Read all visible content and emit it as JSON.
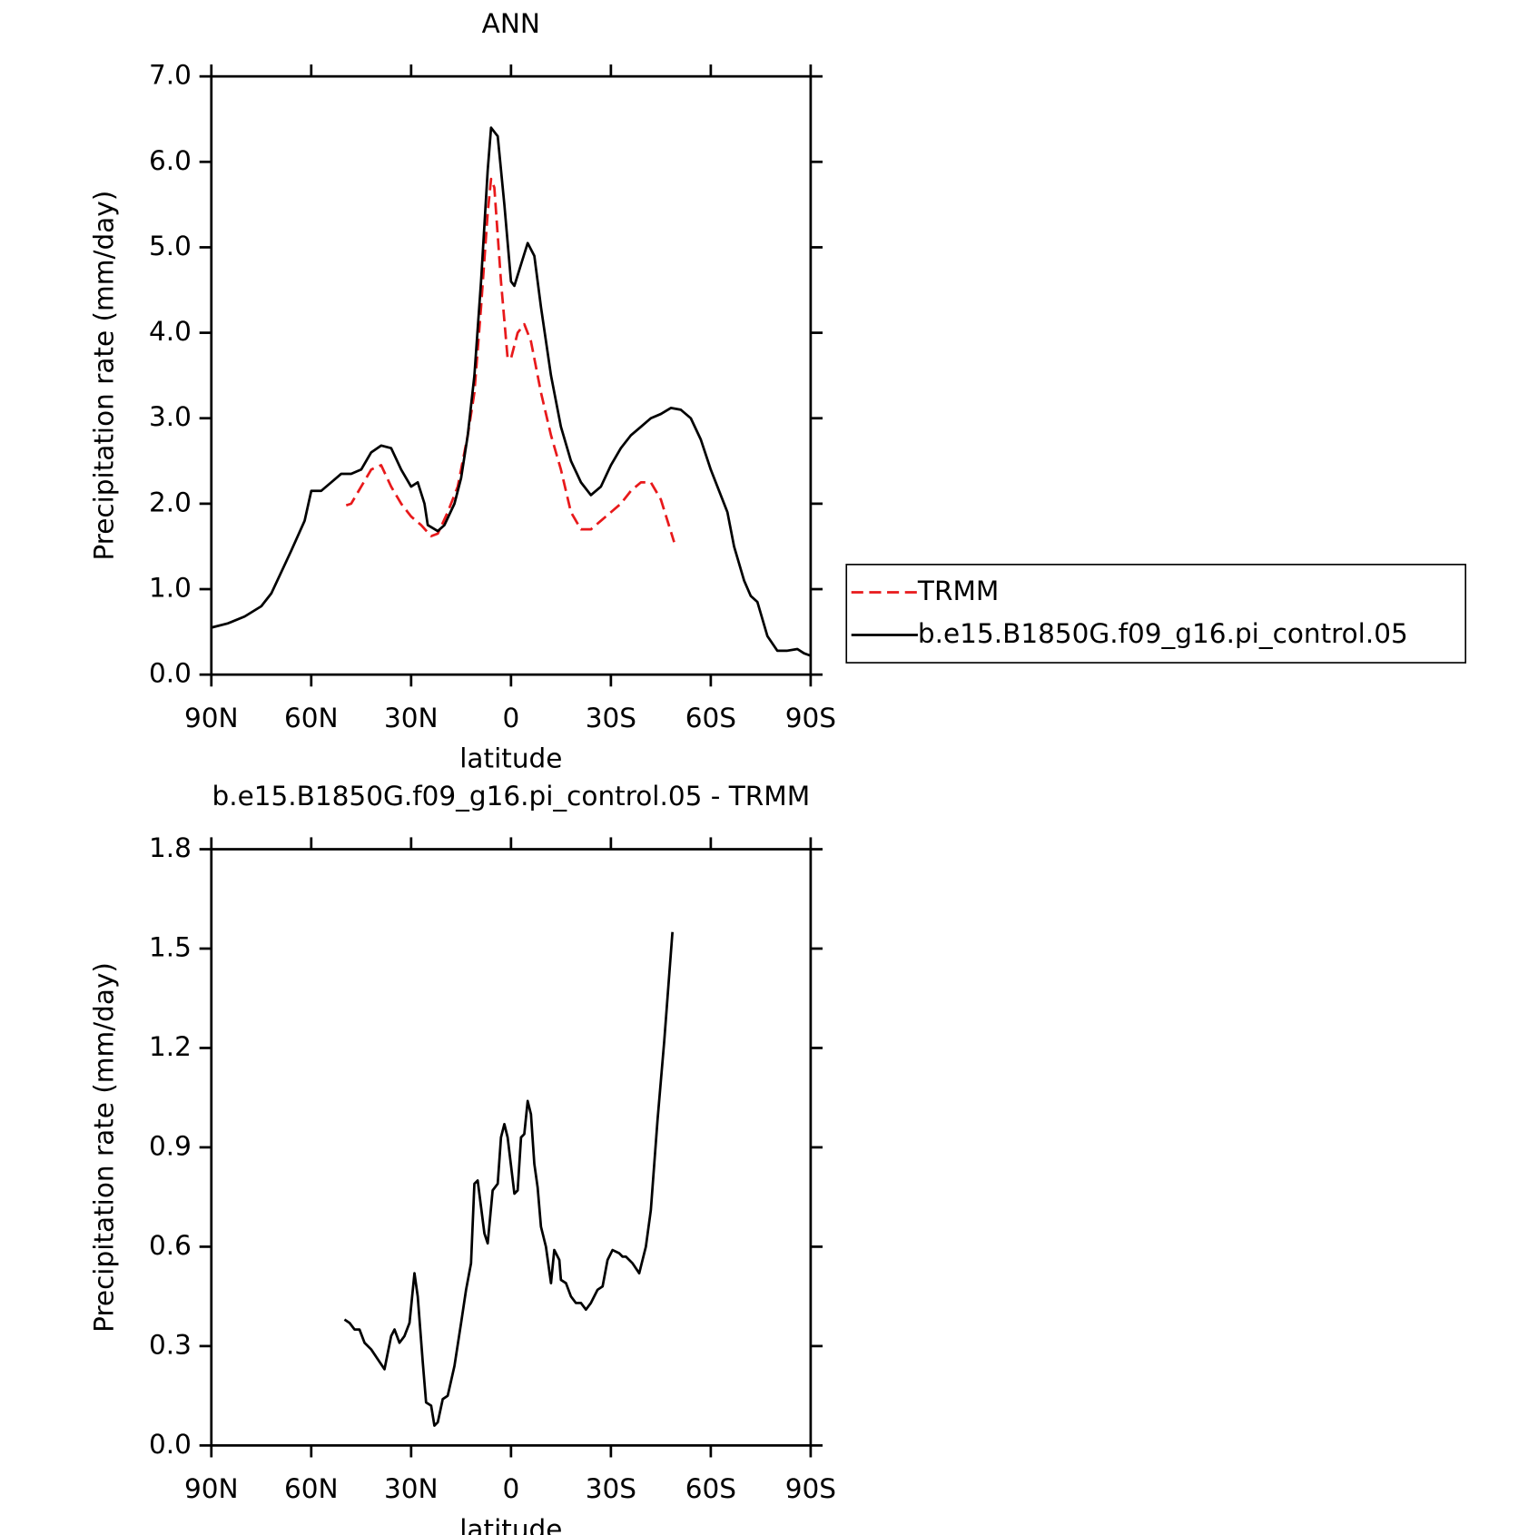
{
  "chart_data": [
    {
      "type": "line",
      "title": "ANN",
      "xlabel": "latitude",
      "ylabel": "Precipitation rate (mm/day)",
      "xlim": [
        90,
        -90
      ],
      "xticks": [
        {
          "value": 90,
          "label": "90N"
        },
        {
          "value": 60,
          "label": "60N"
        },
        {
          "value": 30,
          "label": "30N"
        },
        0,
        {
          "value": -30,
          "label": "30S"
        },
        {
          "value": -60,
          "label": "60S"
        },
        {
          "value": -90,
          "label": "90S"
        }
      ],
      "ylim": [
        0,
        7
      ],
      "yticks": [
        {
          "value": 0,
          "label": "0.0"
        },
        {
          "value": 1,
          "label": "1.0"
        },
        {
          "value": 2,
          "label": "2.0"
        },
        {
          "value": 3,
          "label": "3.0"
        },
        {
          "value": 4,
          "label": "4.0"
        },
        {
          "value": 5,
          "label": "5.0"
        },
        {
          "value": 6,
          "label": "6.0"
        },
        {
          "value": 7,
          "label": "7.0"
        }
      ],
      "legend": "right",
      "series": [
        {
          "name": "TRMM",
          "color": "#e8191b",
          "dashed": true,
          "x": [
            49.5,
            48,
            45,
            42,
            39,
            36,
            33,
            30,
            27,
            24,
            22,
            19,
            16,
            13,
            11,
            9,
            7,
            6,
            5,
            3,
            1,
            0,
            -2,
            -4,
            -6,
            -9,
            -12,
            -15,
            -18,
            -21,
            -24,
            -27,
            -30,
            -33,
            -36,
            -39,
            -42,
            -45,
            -47,
            -49
          ],
          "values": [
            1.98,
            2.0,
            2.2,
            2.4,
            2.45,
            2.2,
            2.0,
            1.85,
            1.75,
            1.62,
            1.65,
            1.9,
            2.2,
            2.8,
            3.3,
            4.3,
            5.4,
            5.8,
            5.7,
            4.6,
            3.7,
            3.7,
            4.0,
            4.1,
            3.9,
            3.3,
            2.8,
            2.4,
            1.9,
            1.7,
            1.7,
            1.8,
            1.9,
            2.0,
            2.15,
            2.25,
            2.25,
            2.05,
            1.8,
            1.55
          ]
        },
        {
          "name": "b.e15.B1850G.f09_g16.pi_control.05",
          "color": "#000000",
          "dashed": false,
          "x": [
            90,
            85,
            80,
            75,
            72,
            69,
            66,
            62,
            60,
            57,
            54,
            51,
            48,
            45,
            42,
            39,
            36,
            33,
            30,
            28,
            26,
            25,
            22,
            20,
            17,
            15,
            13,
            11,
            9,
            7,
            6,
            4,
            2,
            0,
            -1,
            -3,
            -5,
            -7,
            -9,
            -12,
            -15,
            -18,
            -21,
            -24,
            -27,
            -30,
            -33,
            -36,
            -39,
            -42,
            -45,
            -48,
            -51,
            -54,
            -57,
            -60,
            -63,
            -65,
            -67,
            -70,
            -72,
            -74,
            -77,
            -80,
            -83,
            -86,
            -88,
            -90
          ],
          "values": [
            0.55,
            0.6,
            0.68,
            0.8,
            0.95,
            1.2,
            1.45,
            1.8,
            2.15,
            2.15,
            2.25,
            2.35,
            2.35,
            2.4,
            2.6,
            2.68,
            2.65,
            2.4,
            2.2,
            2.25,
            2.0,
            1.75,
            1.68,
            1.75,
            2.0,
            2.3,
            2.8,
            3.5,
            4.6,
            5.9,
            6.4,
            6.3,
            5.5,
            4.6,
            4.55,
            4.8,
            5.05,
            4.9,
            4.3,
            3.5,
            2.9,
            2.5,
            2.25,
            2.1,
            2.2,
            2.45,
            2.65,
            2.8,
            2.9,
            3.0,
            3.05,
            3.12,
            3.1,
            3.0,
            2.75,
            2.4,
            2.1,
            1.9,
            1.5,
            1.1,
            0.92,
            0.85,
            0.45,
            0.28,
            0.28,
            0.3,
            0.25,
            0.22
          ]
        }
      ]
    },
    {
      "type": "line",
      "title": "b.e15.B1850G.f09_g16.pi_control.05 - TRMM",
      "xlabel": "latitude",
      "ylabel": "Precipitation rate (mm/day)",
      "xlim": [
        90,
        -90
      ],
      "xticks": [
        {
          "value": 90,
          "label": "90N"
        },
        {
          "value": 60,
          "label": "60N"
        },
        {
          "value": 30,
          "label": "30N"
        },
        0,
        {
          "value": -30,
          "label": "30S"
        },
        {
          "value": -60,
          "label": "60S"
        },
        {
          "value": -90,
          "label": "90S"
        }
      ],
      "ylim": [
        0,
        1.8
      ],
      "yticks": [
        {
          "value": 0,
          "label": "0.0"
        },
        0.3,
        0.6,
        0.9,
        1.2,
        1.5,
        1.8
      ],
      "color": "#000000",
      "x": [
        50,
        48.5,
        47,
        45.5,
        44,
        42,
        40,
        38,
        36,
        35,
        33.5,
        32,
        30.5,
        29,
        28,
        26.5,
        25.5,
        24,
        23,
        22,
        20.5,
        19,
        17,
        15,
        13.5,
        12,
        11,
        10,
        8,
        7,
        5.5,
        4,
        3,
        2,
        1,
        -1,
        -2,
        -3,
        -4,
        -5,
        -6,
        -7,
        -8,
        -9,
        -10.5,
        -12,
        -13,
        -14.5,
        -15,
        -16.5,
        -18,
        -19.5,
        -21,
        -22.5,
        -24,
        -26,
        -27.5,
        -29,
        -30.5,
        -32.5,
        -33.5,
        -34.5,
        -36.5,
        -38.5,
        -40.5,
        -42,
        -44,
        -46,
        -48.5
      ],
      "values": [
        0.38,
        0.37,
        0.35,
        0.35,
        0.31,
        0.29,
        0.26,
        0.23,
        0.33,
        0.35,
        0.31,
        0.33,
        0.37,
        0.52,
        0.45,
        0.25,
        0.13,
        0.12,
        0.06,
        0.07,
        0.14,
        0.15,
        0.24,
        0.37,
        0.47,
        0.55,
        0.79,
        0.8,
        0.64,
        0.61,
        0.77,
        0.79,
        0.93,
        0.97,
        0.93,
        0.76,
        0.77,
        0.93,
        0.94,
        1.04,
        1.0,
        0.85,
        0.78,
        0.66,
        0.6,
        0.49,
        0.59,
        0.56,
        0.5,
        0.49,
        0.45,
        0.43,
        0.43,
        0.41,
        0.43,
        0.47,
        0.48,
        0.56,
        0.59,
        0.58,
        0.57,
        0.57,
        0.55,
        0.52,
        0.6,
        0.71,
        0.98,
        1.22,
        1.55
      ]
    }
  ]
}
